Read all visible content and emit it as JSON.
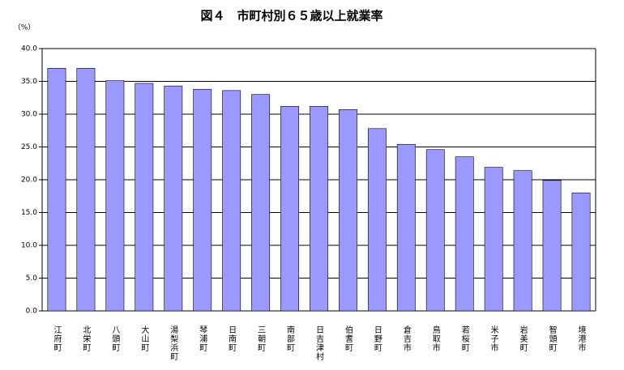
{
  "chart_data": {
    "type": "bar",
    "title": "図４　市町村別６５歳以上就業率",
    "y_label": "（%）",
    "categories": [
      "江府町",
      "北栄町",
      "八頭町",
      "大山町",
      "湯梨浜町",
      "琴浦町",
      "日南町",
      "三朝町",
      "南部町",
      "日吉津村",
      "伯耆町",
      "日野町",
      "倉吉市",
      "鳥取市",
      "若桜町",
      "米子市",
      "岩美町",
      "智頭町",
      "境港市"
    ],
    "values": [
      37.0,
      37.0,
      35.1,
      34.7,
      34.3,
      33.8,
      33.6,
      33.0,
      31.2,
      31.2,
      30.7,
      27.8,
      25.4,
      24.6,
      23.5,
      21.9,
      21.4,
      19.9,
      18.0
    ],
    "color": "#9999ff",
    "ylim": [
      0,
      40
    ],
    "yticks": [
      {
        "value": 0,
        "label": "0.0"
      },
      {
        "value": 5,
        "label": "5.0"
      },
      {
        "value": 10,
        "label": "10.0"
      },
      {
        "value": 15,
        "label": "15.0"
      },
      {
        "value": 20,
        "label": "20.0"
      },
      {
        "value": 25,
        "label": "25.0"
      },
      {
        "value": 30,
        "label": "30.0"
      },
      {
        "value": 35,
        "label": "35.0"
      },
      {
        "value": 40,
        "label": "40.0"
      }
    ],
    "grid": true
  }
}
